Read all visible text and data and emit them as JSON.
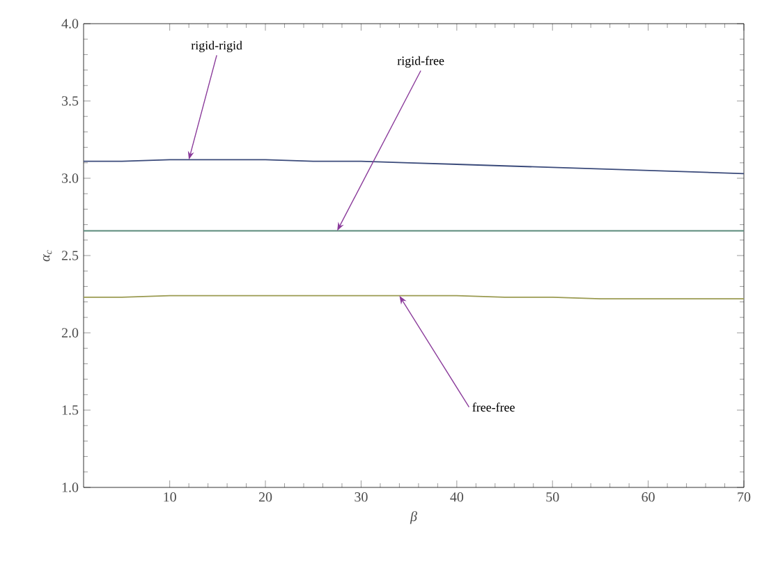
{
  "chart_data": {
    "type": "line",
    "xlabel": "β",
    "ylabel": "α$_{c}$",
    "xlim": [
      1,
      70
    ],
    "xticks": [
      10,
      20,
      30,
      40,
      50,
      60,
      70
    ],
    "ylim": [
      1,
      4
    ],
    "yticks": [
      {
        "value": 1,
        "label": "1.0"
      },
      {
        "value": 1.5,
        "label": "1.5"
      },
      {
        "value": 2,
        "label": "2.0"
      },
      {
        "value": 2.5,
        "label": "2.5"
      },
      {
        "value": 3,
        "label": "3.0"
      },
      {
        "value": 3.5,
        "label": "3.5"
      },
      {
        "value": 4,
        "label": "4.0"
      }
    ],
    "x": [
      1,
      5,
      10,
      15,
      20,
      25,
      30,
      35,
      40,
      45,
      50,
      55,
      60,
      65,
      70
    ],
    "series": [
      {
        "color": "#3a4a7a",
        "values": [
          3.11,
          3.11,
          3.12,
          3.12,
          3.12,
          3.11,
          3.11,
          3.1,
          3.09,
          3.08,
          3.07,
          3.06,
          3.05,
          3.04,
          3.03
        ]
      },
      {
        "color": "#5a8a7a",
        "values": [
          2.66,
          2.66,
          2.66,
          2.66,
          2.66,
          2.66,
          2.66,
          2.66,
          2.66,
          2.66,
          2.66,
          2.66,
          2.66,
          2.66,
          2.66
        ]
      },
      {
        "color": "#9a9a50",
        "values": [
          2.23,
          2.23,
          2.24,
          2.24,
          2.24,
          2.24,
          2.24,
          2.24,
          2.24,
          2.23,
          2.23,
          2.22,
          2.22,
          2.22,
          2.22
        ]
      }
    ],
    "annotations": [
      {
        "text": "rigid-rigid",
        "x": 12,
        "y": 3.12
      },
      {
        "text": "rigid-free",
        "x": 27.5,
        "y": 2.66
      },
      {
        "text": "free-free",
        "x": 34,
        "y": 2.24
      }
    ],
    "marker": "none",
    "line_style": "solid"
  }
}
